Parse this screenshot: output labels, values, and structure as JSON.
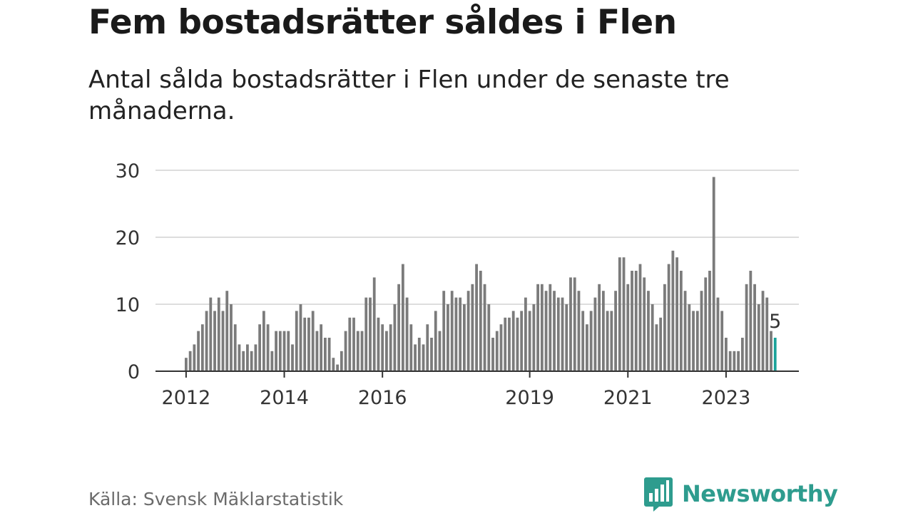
{
  "title": "Fem bostadsrätter såldes i Flen",
  "subtitle": "Antal sålda bostadsrätter i Flen under de senaste tre månaderna.",
  "source": "Källa: Svensk Mäklarstatistik",
  "brand": {
    "name": "Newsworthy",
    "icon": "newsworthy-logo-icon"
  },
  "colors": {
    "bar": "#7b7b7b",
    "highlight": "#1aa39a",
    "grid": "#dddddd",
    "axis": "#333333",
    "brand": "#2e9c8e"
  },
  "chart_data": {
    "type": "bar",
    "x_start": "2012-01",
    "x_tick_labels": [
      "2012",
      "2014",
      "2016",
      "2019",
      "2021",
      "2023"
    ],
    "y_tick_labels": [
      "0",
      "10",
      "20",
      "30"
    ],
    "ylim": [
      0,
      30
    ],
    "grid": true,
    "highlight_last": true,
    "last_label": "5",
    "values": [
      2,
      3,
      4,
      6,
      7,
      9,
      11,
      9,
      11,
      9,
      12,
      10,
      7,
      4,
      3,
      4,
      3,
      4,
      7,
      9,
      7,
      3,
      6,
      6,
      6,
      6,
      4,
      9,
      10,
      8,
      8,
      9,
      6,
      7,
      5,
      5,
      2,
      1,
      3,
      6,
      8,
      8,
      6,
      6,
      11,
      11,
      14,
      8,
      7,
      6,
      7,
      10,
      13,
      16,
      11,
      7,
      4,
      5,
      4,
      7,
      5,
      9,
      6,
      12,
      10,
      12,
      11,
      11,
      10,
      12,
      13,
      16,
      15,
      13,
      10,
      5,
      6,
      7,
      8,
      8,
      9,
      8,
      9,
      11,
      9,
      10,
      13,
      13,
      12,
      13,
      12,
      11,
      11,
      10,
      14,
      14,
      12,
      9,
      7,
      9,
      11,
      13,
      12,
      9,
      9,
      12,
      17,
      17,
      13,
      15,
      15,
      16,
      14,
      12,
      10,
      7,
      8,
      13,
      16,
      18,
      17,
      15,
      12,
      10,
      9,
      9,
      12,
      14,
      15,
      29,
      11,
      9,
      5,
      3,
      3,
      3,
      5,
      13,
      15,
      13,
      10,
      12,
      11,
      6,
      5
    ]
  }
}
